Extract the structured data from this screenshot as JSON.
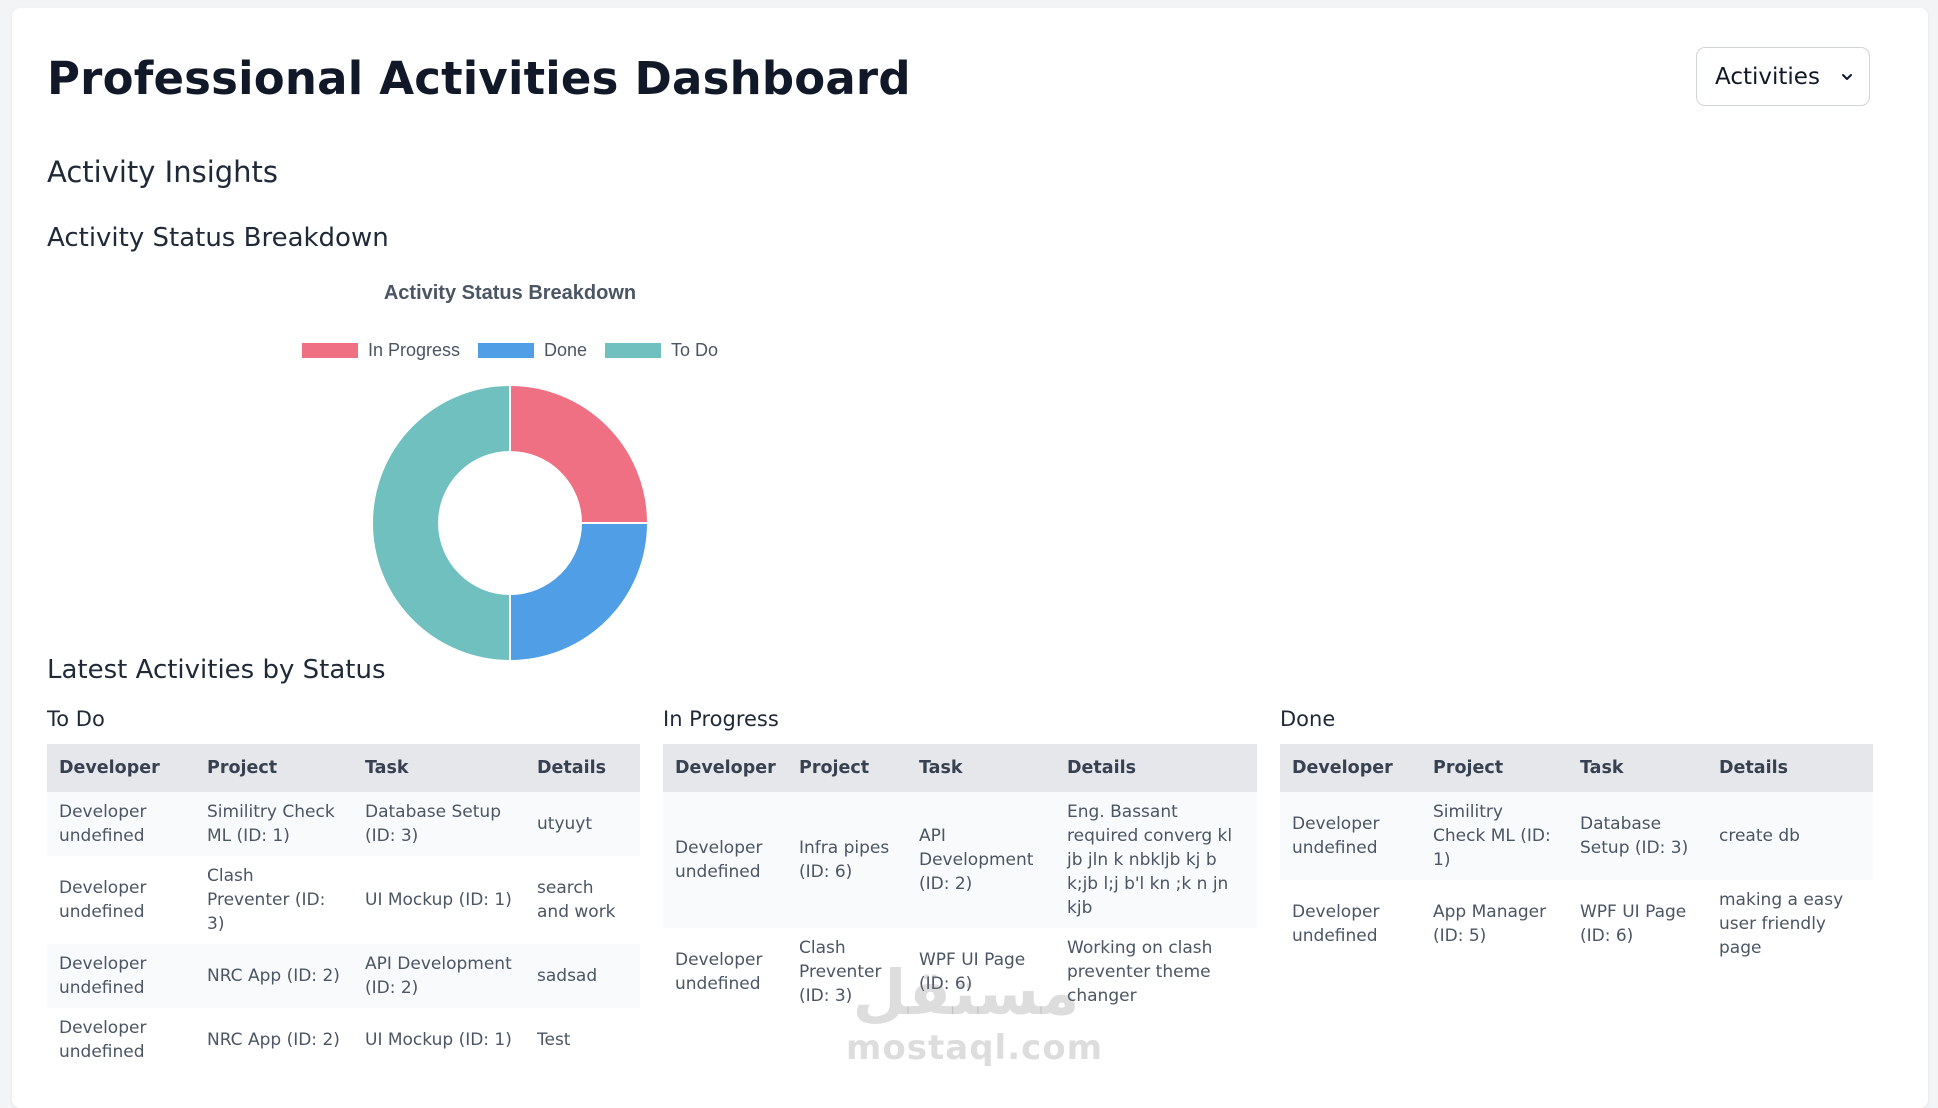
{
  "header": {
    "title": "Professional Activities Dashboard",
    "view_select": {
      "selected": "Activities"
    }
  },
  "insights": {
    "heading": "Activity Insights",
    "chart_heading": "Activity Status Breakdown"
  },
  "chart_data": {
    "type": "pie",
    "title": "Activity Status Breakdown",
    "legend_position": "top",
    "categories": [
      "In Progress",
      "Done",
      "To Do"
    ],
    "values": [
      2,
      2,
      4
    ],
    "colors": [
      "#ef6f83",
      "#4f9ee6",
      "#6fc0bf"
    ],
    "donut": true
  },
  "latest": {
    "heading": "Latest Activities by Status",
    "columns": [
      "Developer",
      "Project",
      "Task",
      "Details"
    ],
    "todo": {
      "title": "To Do",
      "rows": [
        [
          "Developer undefined",
          "Similitry Check ML (ID: 1)",
          "Database Setup (ID: 3)",
          "utyuyt"
        ],
        [
          "Developer undefined",
          "Clash Preventer (ID: 3)",
          "UI Mockup (ID: 1)",
          "search and work"
        ],
        [
          "Developer undefined",
          "NRC App (ID: 2)",
          "API Development (ID: 2)",
          "sadsad"
        ],
        [
          "Developer undefined",
          "NRC App (ID: 2)",
          "UI Mockup (ID: 1)",
          "Test"
        ]
      ]
    },
    "in_progress": {
      "title": "In Progress",
      "rows": [
        [
          "Developer undefined",
          "Infra pipes (ID: 6)",
          "API Development (ID: 2)",
          "Eng. Bassant required converg kl jb jln k nbkljb kj b k;jb l;j b'l kn ;k n jn kjb"
        ],
        [
          "Developer undefined",
          "Clash Preventer (ID: 3)",
          "WPF UI Page (ID: 6)",
          "Working on clash preventer theme changer"
        ]
      ]
    },
    "done": {
      "title": "Done",
      "rows": [
        [
          "Developer undefined",
          "Similitry Check ML (ID: 1)",
          "Database Setup (ID: 3)",
          "create db"
        ],
        [
          "Developer undefined",
          "App Manager (ID: 5)",
          "WPF UI Page (ID: 6)",
          "making a easy user friendly page"
        ]
      ]
    }
  },
  "watermark": {
    "arabic": "مستقل",
    "latin": "mostaql.com"
  }
}
